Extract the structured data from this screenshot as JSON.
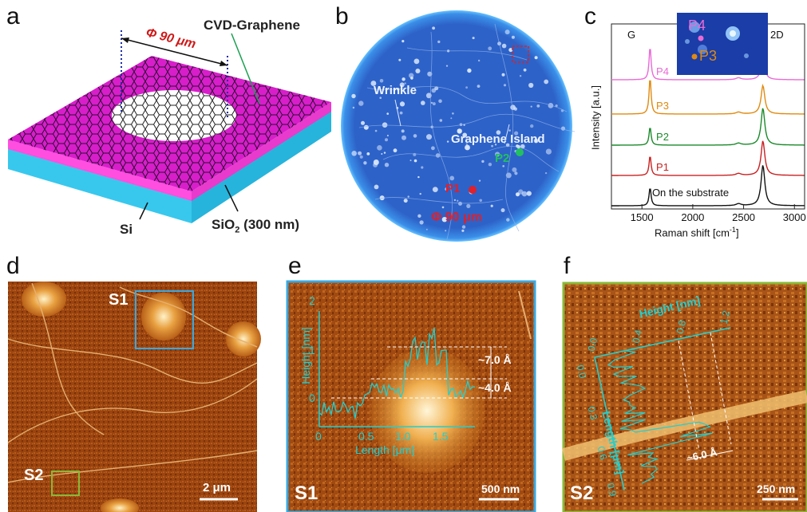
{
  "panels": {
    "a": {
      "label": "a",
      "title": "CVD-Graphene",
      "diameter": "Φ 90 μm",
      "substrate": "Si",
      "oxide": "SiO",
      "oxide_sub": "2",
      "oxide_thickness": "(300 nm)",
      "colors": {
        "graphene": "#e01fd0",
        "sio2": "#ff55e0",
        "si": "#3fd4f2"
      }
    },
    "b": {
      "label": "b",
      "wrinkle": "Wrinkle",
      "island": "Graphene  Island",
      "p1": "P1",
      "p2": "P2",
      "diameter": "Φ 90 μm",
      "colors": {
        "field": "#2a60c8",
        "p1": "#e0202a",
        "p2": "#22c060"
      }
    },
    "c": {
      "label": "c",
      "g_label": "G",
      "d2_label": "2D",
      "inset_p4": "P4",
      "inset_p3": "P3",
      "ylabel": "Intensity [a.u.]",
      "xlabel_main": "Raman shift [cm",
      "xlabel_sup": "-1",
      "xlabel_end": "]"
    },
    "d": {
      "label": "d",
      "s1": "S1",
      "s2": "S2",
      "scale": "2 μm"
    },
    "e": {
      "label": "e",
      "corner": "S1",
      "scale": "500 nm",
      "ylabel": "Height [nm]",
      "xlabel": "Length [μm]",
      "ann1": "~7.0 Å",
      "ann2": "~4.0 Å",
      "yticks": [
        "0",
        "1",
        "2"
      ],
      "xticks": [
        "0",
        "0.5",
        "1.0",
        "1.5"
      ]
    },
    "f": {
      "label": "f",
      "corner": "S2",
      "scale": "250 nm",
      "height_label": "Height [nm]",
      "length_label": "Length [μm]",
      "hticks": [
        "0.0",
        "0.4",
        "0.8",
        "1.2"
      ],
      "lticks": [
        "0.0",
        "0.3",
        "0.6",
        "0.9"
      ],
      "ann": "~6.0 Å"
    }
  },
  "chart_data": {
    "type": "line",
    "title": "",
    "xlabel": "Raman shift [cm-1]",
    "ylabel": "Intensity [a.u.]",
    "xlim": [
      1200,
      3100
    ],
    "xticks": [
      1500,
      2000,
      2500,
      3000
    ],
    "peaks": {
      "G": 1580,
      "2D": 2690
    },
    "series": [
      {
        "name": "P4",
        "color": "#e96ad6",
        "g_height": 1.0,
        "d2_height": 0.9
      },
      {
        "name": "P3",
        "color": "#e08a10",
        "g_height": 1.1,
        "d2_height": 1.2
      },
      {
        "name": "P2",
        "color": "#1a8a2a",
        "g_height": 0.55,
        "d2_height": 1.55
      },
      {
        "name": "P1",
        "color": "#c82020",
        "g_height": 0.6,
        "d2_height": 1.45
      },
      {
        "name": "On the substrate",
        "color": "#111111",
        "g_height": 0.55,
        "d2_height": 1.7
      }
    ]
  }
}
